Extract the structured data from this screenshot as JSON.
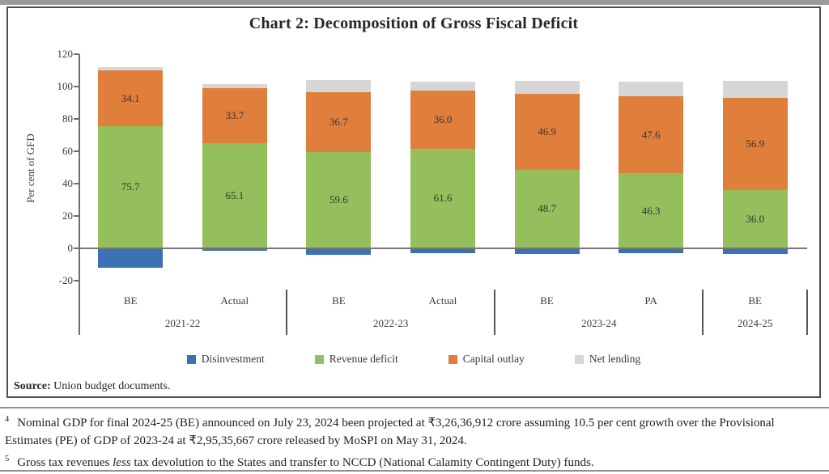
{
  "figure": {
    "title": "Chart 2: Decomposition of Gross Fiscal Deficit",
    "source_label": "Source:",
    "source_text": " Union budget documents."
  },
  "chart_data": {
    "type": "bar",
    "stacked": true,
    "title": "Chart 2: Decomposition of Gross Fiscal Deficit",
    "ylabel": "Per cent of GFD",
    "ylim": [
      -20,
      120
    ],
    "ytick_interval": 20,
    "grid": false,
    "legend_position": "bottom",
    "categories": [
      "BE",
      "Actual",
      "BE",
      "Actual",
      "BE",
      "PA",
      "BE"
    ],
    "groups": [
      {
        "label": "2021-22",
        "bar_indexes": [
          0,
          1
        ]
      },
      {
        "label": "2022-23",
        "bar_indexes": [
          2,
          3
        ]
      },
      {
        "label": "2023-24",
        "bar_indexes": [
          4,
          5
        ]
      },
      {
        "label": "2024-25",
        "bar_indexes": [
          6
        ]
      }
    ],
    "series": [
      {
        "name": "Disinvestment",
        "color": "#3a72b4",
        "labels_shown": false,
        "values": [
          -12.0,
          -1.7,
          -4.0,
          -3.0,
          -3.5,
          -3.0,
          -3.5
        ]
      },
      {
        "name": "Revenue deficit",
        "color": "#94bf5c",
        "labels_shown": true,
        "values": [
          75.7,
          65.1,
          59.6,
          61.6,
          48.7,
          46.3,
          36.0
        ]
      },
      {
        "name": "Capital outlay",
        "color": "#e07e3c",
        "labels_shown": true,
        "values": [
          34.1,
          33.7,
          36.7,
          36.0,
          46.9,
          47.6,
          56.9
        ]
      },
      {
        "name": "Net lending",
        "color": "#d6d6d6",
        "labels_shown": false,
        "values": [
          2.2,
          2.9,
          7.7,
          5.4,
          7.9,
          9.1,
          10.6
        ]
      }
    ]
  },
  "footnotes": {
    "fn4_marker": "4",
    "fn4_text": "Nominal GDP for final 2024-25 (BE) announced on July 23, 2024 been projected at ₹3,26,36,912 crore assuming 10.5 per cent growth over the Provisional Estimates (PE) of GDP of 2023-24 at ₹2,95,35,667 crore released by MoSPI on May 31, 2024.",
    "fn5_marker": "5",
    "fn5_pre": "Gross tax revenues ",
    "fn5_italic": "less",
    "fn5_post": " tax devolution to the States and transfer to NCCD (National Calamity Contingent Duty) funds."
  }
}
